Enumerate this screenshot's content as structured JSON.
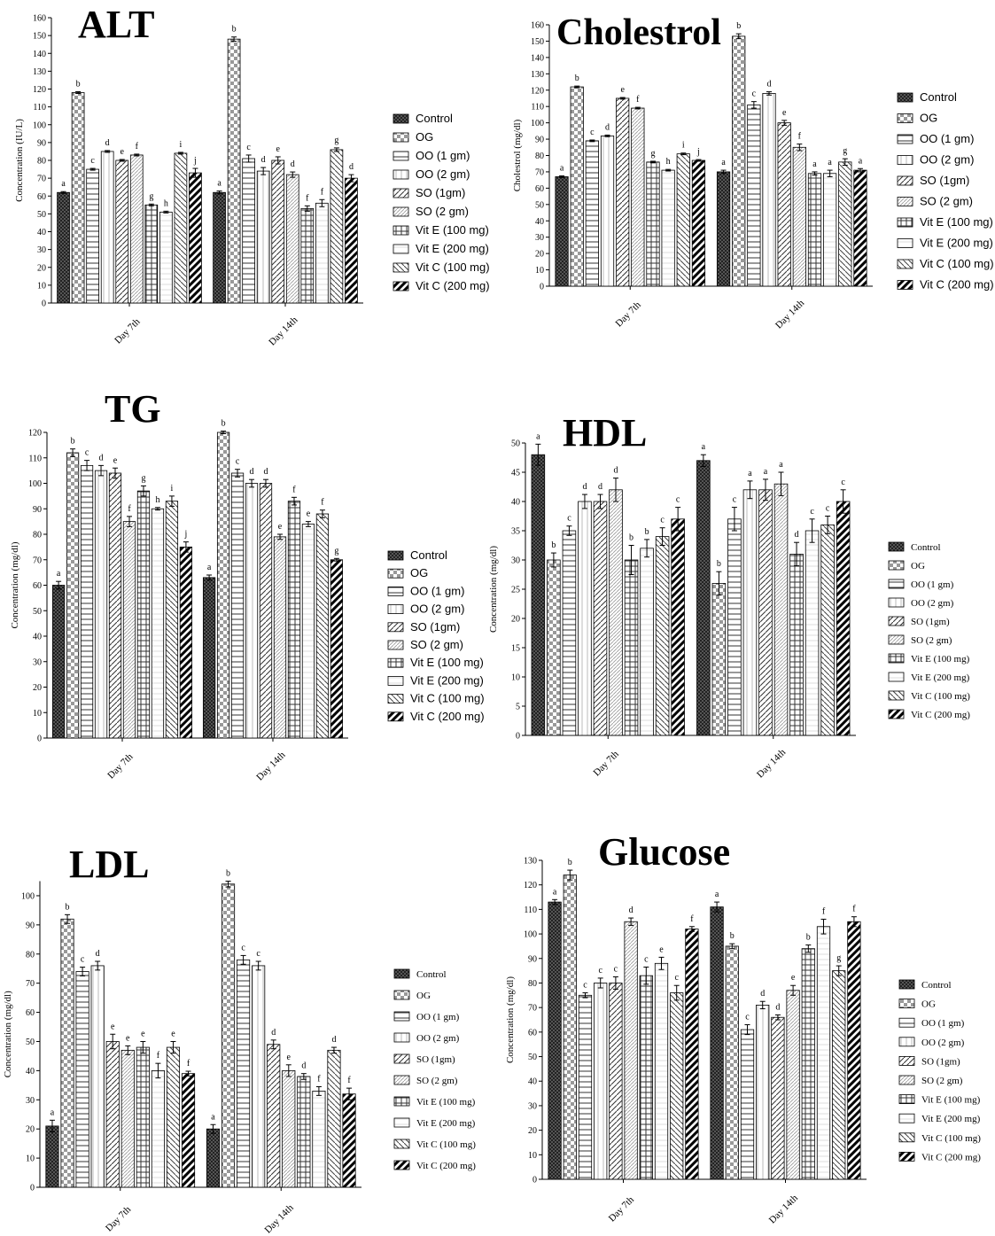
{
  "legend_labels": [
    "Control",
    "OG",
    "OO (1 gm)",
    "OO (2 gm)",
    "SO (1gm)",
    "SO (2 gm)",
    "Vit E (100 mg)",
    "Vit E (200 mg)",
    "Vit C (100 mg)",
    "Vit C (200 mg)"
  ],
  "chart_data": [
    {
      "type": "bar",
      "title": "ALT",
      "ylabel": "Concentration (IU/L)",
      "categories": [
        "Day 7th",
        "Day 14th"
      ],
      "ylim": [
        0,
        160
      ],
      "yticks": [
        0,
        10,
        20,
        30,
        40,
        50,
        60,
        70,
        80,
        90,
        100,
        110,
        120,
        130,
        140,
        150,
        160
      ],
      "legend_position": "right",
      "series": [
        {
          "name": "Control",
          "values": [
            62,
            62
          ],
          "errors": [
            0.5,
            0.8
          ],
          "letters": [
            "a",
            "a"
          ]
        },
        {
          "name": "OG",
          "values": [
            118,
            148
          ],
          "errors": [
            0.5,
            1.2
          ],
          "letters": [
            "b",
            "b"
          ]
        },
        {
          "name": "OO (1 gm)",
          "values": [
            75,
            81
          ],
          "errors": [
            0.5,
            2
          ],
          "letters": [
            "c",
            "c"
          ]
        },
        {
          "name": "OO (2 gm)",
          "values": [
            85,
            74
          ],
          "errors": [
            0.5,
            2
          ],
          "letters": [
            "d",
            "d"
          ]
        },
        {
          "name": "SO (1gm)",
          "values": [
            80,
            80
          ],
          "errors": [
            0.5,
            2
          ],
          "letters": [
            "e",
            "e"
          ]
        },
        {
          "name": "SO (2 gm)",
          "values": [
            83,
            72
          ],
          "errors": [
            0.5,
            1.5
          ],
          "letters": [
            "f",
            "d"
          ]
        },
        {
          "name": "Vit E (100 mg)",
          "values": [
            55,
            53
          ],
          "errors": [
            0.5,
            1.5
          ],
          "letters": [
            "g",
            "f"
          ]
        },
        {
          "name": "Vit E (200 mg)",
          "values": [
            51,
            56
          ],
          "errors": [
            0.5,
            2
          ],
          "letters": [
            "h",
            "f"
          ]
        },
        {
          "name": "Vit C (100 mg)",
          "values": [
            84,
            86
          ],
          "errors": [
            0.5,
            1
          ],
          "letters": [
            "i",
            "g"
          ]
        },
        {
          "name": "Vit C (200 mg)",
          "values": [
            73,
            70
          ],
          "errors": [
            2.5,
            2
          ],
          "letters": [
            "j",
            "d"
          ]
        }
      ]
    },
    {
      "type": "bar",
      "title": "Cholestrol",
      "ylabel": "Cholestrol (mg/dl)",
      "categories": [
        "Day 7th",
        "Day 14th"
      ],
      "ylim": [
        0,
        160
      ],
      "yticks": [
        0,
        10,
        20,
        30,
        40,
        50,
        60,
        70,
        80,
        90,
        100,
        110,
        120,
        130,
        140,
        150,
        160
      ],
      "legend_position": "right",
      "series": [
        {
          "name": "Control",
          "values": [
            67,
            70
          ],
          "errors": [
            0.5,
            1
          ],
          "letters": [
            "a",
            "a"
          ]
        },
        {
          "name": "OG",
          "values": [
            122,
            153
          ],
          "errors": [
            0.5,
            1.5
          ],
          "letters": [
            "b",
            "b"
          ]
        },
        {
          "name": "OO (1 gm)",
          "values": [
            89,
            111
          ],
          "errors": [
            0.5,
            2
          ],
          "letters": [
            "c",
            "c"
          ]
        },
        {
          "name": "OO (2 gm)",
          "values": [
            92,
            118
          ],
          "errors": [
            0.5,
            1
          ],
          "letters": [
            "d",
            "d"
          ]
        },
        {
          "name": "SO (1gm)",
          "values": [
            115,
            100
          ],
          "errors": [
            0.5,
            1.5
          ],
          "letters": [
            "e",
            "e"
          ]
        },
        {
          "name": "SO (2 gm)",
          "values": [
            109,
            85
          ],
          "errors": [
            0.5,
            2
          ],
          "letters": [
            "f",
            "f"
          ]
        },
        {
          "name": "Vit E (100 mg)",
          "values": [
            76,
            69
          ],
          "errors": [
            0.5,
            1
          ],
          "letters": [
            "g",
            "a"
          ]
        },
        {
          "name": "Vit E (200 mg)",
          "values": [
            71,
            69
          ],
          "errors": [
            0.5,
            2
          ],
          "letters": [
            "h",
            "a"
          ]
        },
        {
          "name": "Vit C (100 mg)",
          "values": [
            81,
            76
          ],
          "errors": [
            0.5,
            2
          ],
          "letters": [
            "i",
            "g"
          ]
        },
        {
          "name": "Vit C (200 mg)",
          "values": [
            77,
            71
          ],
          "errors": [
            0.5,
            1
          ],
          "letters": [
            "j",
            "a"
          ]
        }
      ]
    },
    {
      "type": "bar",
      "title": "TG",
      "ylabel": "Concentration (mg/dl)",
      "categories": [
        "Day 7th",
        "Day 14th"
      ],
      "ylim": [
        0,
        120
      ],
      "yticks": [
        0,
        10,
        20,
        30,
        40,
        50,
        60,
        70,
        80,
        90,
        100,
        110,
        120
      ],
      "legend_position": "right",
      "series": [
        {
          "name": "Control",
          "values": [
            60,
            63
          ],
          "errors": [
            1.5,
            1
          ],
          "letters": [
            "a",
            "a"
          ]
        },
        {
          "name": "OG",
          "values": [
            112,
            120
          ],
          "errors": [
            1.5,
            0.5
          ],
          "letters": [
            "b",
            "b"
          ]
        },
        {
          "name": "OO (1 gm)",
          "values": [
            107,
            104
          ],
          "errors": [
            2,
            1.5
          ],
          "letters": [
            "c",
            "c"
          ]
        },
        {
          "name": "OO (2 gm)",
          "values": [
            105,
            100
          ],
          "errors": [
            2,
            1.5
          ],
          "letters": [
            "d",
            "d"
          ]
        },
        {
          "name": "SO (1gm)",
          "values": [
            104,
            100
          ],
          "errors": [
            2,
            1.5
          ],
          "letters": [
            "e",
            "d"
          ]
        },
        {
          "name": "SO (2 gm)",
          "values": [
            85,
            79
          ],
          "errors": [
            2,
            1
          ],
          "letters": [
            "f",
            "e"
          ]
        },
        {
          "name": "Vit E (100 mg)",
          "values": [
            97,
            93
          ],
          "errors": [
            2,
            1.5
          ],
          "letters": [
            "g",
            "f"
          ]
        },
        {
          "name": "Vit E (200 mg)",
          "values": [
            90,
            84
          ],
          "errors": [
            0.5,
            1
          ],
          "letters": [
            "h",
            "e"
          ]
        },
        {
          "name": "Vit C (100 mg)",
          "values": [
            93,
            88
          ],
          "errors": [
            2,
            1.5
          ],
          "letters": [
            "i",
            "f"
          ]
        },
        {
          "name": "Vit C (200 mg)",
          "values": [
            75,
            70
          ],
          "errors": [
            2,
            0.5
          ],
          "letters": [
            "j",
            "g"
          ]
        }
      ]
    },
    {
      "type": "bar",
      "title": "HDL",
      "ylabel": "Concentration (mg/dl)",
      "categories": [
        "Day 7th",
        "Day 14th"
      ],
      "ylim": [
        0,
        50
      ],
      "yticks": [
        0,
        5,
        10,
        15,
        20,
        25,
        30,
        35,
        40,
        45,
        50
      ],
      "legend_position": "right",
      "series": [
        {
          "name": "Control",
          "values": [
            48,
            47
          ],
          "errors": [
            1.8,
            1
          ],
          "letters": [
            "a",
            "a"
          ]
        },
        {
          "name": "OG",
          "values": [
            30,
            26
          ],
          "errors": [
            1.2,
            2
          ],
          "letters": [
            "b",
            "b"
          ]
        },
        {
          "name": "OO (1 gm)",
          "values": [
            35,
            37
          ],
          "errors": [
            0.8,
            2
          ],
          "letters": [
            "c",
            "c"
          ]
        },
        {
          "name": "OO (2 gm)",
          "values": [
            40,
            42
          ],
          "errors": [
            1.2,
            1.5
          ],
          "letters": [
            "d",
            "a"
          ]
        },
        {
          "name": "SO (1gm)",
          "values": [
            40,
            42
          ],
          "errors": [
            1.2,
            1.8
          ],
          "letters": [
            "d",
            "a"
          ]
        },
        {
          "name": "SO (2 gm)",
          "values": [
            42,
            43
          ],
          "errors": [
            2,
            2
          ],
          "letters": [
            "d",
            "a"
          ]
        },
        {
          "name": "Vit E (100 mg)",
          "values": [
            30,
            31
          ],
          "errors": [
            2.5,
            2
          ],
          "letters": [
            "b",
            "d"
          ]
        },
        {
          "name": "Vit E (200 mg)",
          "values": [
            32,
            35
          ],
          "errors": [
            1.5,
            2
          ],
          "letters": [
            "b",
            "c"
          ]
        },
        {
          "name": "Vit C (100 mg)",
          "values": [
            34,
            36
          ],
          "errors": [
            1.5,
            1.5
          ],
          "letters": [
            "c",
            "c"
          ]
        },
        {
          "name": "Vit C (200 mg)",
          "values": [
            37,
            40
          ],
          "errors": [
            2,
            2
          ],
          "letters": [
            "c",
            "c"
          ]
        }
      ]
    },
    {
      "type": "bar",
      "title": "LDL",
      "ylabel": "Concentration (mg/dl)",
      "categories": [
        "Day 7th",
        "Day 14th"
      ],
      "ylim": [
        0,
        105
      ],
      "yticks": [
        0,
        10,
        20,
        30,
        40,
        50,
        60,
        70,
        80,
        90,
        100
      ],
      "legend_position": "right",
      "series": [
        {
          "name": "Control",
          "values": [
            21,
            20
          ],
          "errors": [
            2,
            1.5
          ],
          "letters": [
            "a",
            "a"
          ]
        },
        {
          "name": "OG",
          "values": [
            92,
            104
          ],
          "errors": [
            1.5,
            1
          ],
          "letters": [
            "b",
            "b"
          ]
        },
        {
          "name": "OO (1 gm)",
          "values": [
            74,
            78
          ],
          "errors": [
            1.5,
            1.5
          ],
          "letters": [
            "c",
            "c"
          ]
        },
        {
          "name": "OO (2 gm)",
          "values": [
            76,
            76
          ],
          "errors": [
            1.5,
            1.5
          ],
          "letters": [
            "d",
            "c"
          ]
        },
        {
          "name": "SO (1gm)",
          "values": [
            50,
            49
          ],
          "errors": [
            2.5,
            1.5
          ],
          "letters": [
            "e",
            "d"
          ]
        },
        {
          "name": "SO (2 gm)",
          "values": [
            47,
            40
          ],
          "errors": [
            1.5,
            2
          ],
          "letters": [
            "e",
            "e"
          ]
        },
        {
          "name": "Vit E (100 mg)",
          "values": [
            48,
            38
          ],
          "errors": [
            2,
            1
          ],
          "letters": [
            "e",
            "d"
          ]
        },
        {
          "name": "Vit E (200 mg)",
          "values": [
            40,
            33
          ],
          "errors": [
            2.5,
            1.5
          ],
          "letters": [
            "f",
            "f"
          ]
        },
        {
          "name": "Vit C (100 mg)",
          "values": [
            48,
            47
          ],
          "errors": [
            2,
            1
          ],
          "letters": [
            "e",
            "d"
          ]
        },
        {
          "name": "Vit C (200 mg)",
          "values": [
            39,
            32
          ],
          "errors": [
            0.8,
            2
          ],
          "letters": [
            "f",
            "f"
          ]
        }
      ]
    },
    {
      "type": "bar",
      "title": "Glucose",
      "ylabel": "Concentration (mg/dl)",
      "categories": [
        "Day 7th",
        "Day 14th"
      ],
      "ylim": [
        0,
        130
      ],
      "yticks": [
        0,
        10,
        20,
        30,
        40,
        50,
        60,
        70,
        80,
        90,
        100,
        110,
        120,
        130
      ],
      "legend_position": "right",
      "series": [
        {
          "name": "Control",
          "values": [
            113,
            111
          ],
          "errors": [
            1,
            2
          ],
          "letters": [
            "a",
            "a"
          ]
        },
        {
          "name": "OG",
          "values": [
            124,
            95
          ],
          "errors": [
            2,
            1
          ],
          "letters": [
            "b",
            "b"
          ]
        },
        {
          "name": "OO (1 gm)",
          "values": [
            75,
            61
          ],
          "errors": [
            1,
            2
          ],
          "letters": [
            "c",
            "c"
          ]
        },
        {
          "name": "OO (2 gm)",
          "values": [
            80,
            71
          ],
          "errors": [
            2,
            1.5
          ],
          "letters": [
            "c",
            "d"
          ]
        },
        {
          "name": "SO (1gm)",
          "values": [
            80,
            66
          ],
          "errors": [
            2.5,
            1
          ],
          "letters": [
            "c",
            "d"
          ]
        },
        {
          "name": "SO (2 gm)",
          "values": [
            105,
            77
          ],
          "errors": [
            1.5,
            2
          ],
          "letters": [
            "d",
            "e"
          ]
        },
        {
          "name": "Vit E (100 mg)",
          "values": [
            83,
            94
          ],
          "errors": [
            3.5,
            1.5
          ],
          "letters": [
            "c",
            "b"
          ]
        },
        {
          "name": "Vit E (200 mg)",
          "values": [
            88,
            103
          ],
          "errors": [
            2.5,
            3
          ],
          "letters": [
            "e",
            "f"
          ]
        },
        {
          "name": "Vit C (100 mg)",
          "values": [
            76,
            85
          ],
          "errors": [
            3,
            2
          ],
          "letters": [
            "c",
            "g"
          ]
        },
        {
          "name": "Vit C (200 mg)",
          "values": [
            102,
            105
          ],
          "errors": [
            1,
            2
          ],
          "letters": [
            "f",
            "f"
          ]
        }
      ]
    }
  ]
}
